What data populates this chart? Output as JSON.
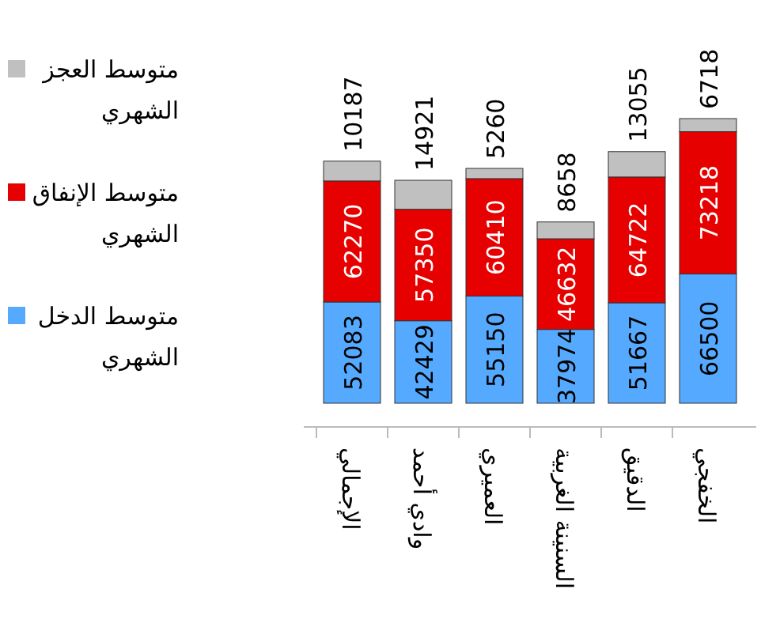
{
  "chart_data": {
    "type": "bar",
    "stacked": true,
    "data_labels": true,
    "legend": "left",
    "categories": [
      "الإجمالي",
      "وادي أحمد",
      "العميري",
      "السنينة الغربية",
      "الدقيق",
      "الخفجي"
    ],
    "series": [
      {
        "name": "متوسط الدخل الشهري",
        "color": "#55aaff",
        "values": [
          52083,
          42429,
          55150,
          37974,
          51667,
          66500
        ]
      },
      {
        "name": "متوسط الإنفاق الشهري",
        "color": "#e60000",
        "values": [
          62270,
          57350,
          60410,
          46632,
          64722,
          73218
        ]
      },
      {
        "name": "متوسط العجز الشهري",
        "color": "#c0c0c0",
        "values": [
          10187,
          14921,
          5260,
          8658,
          13055,
          6718
        ]
      }
    ]
  }
}
